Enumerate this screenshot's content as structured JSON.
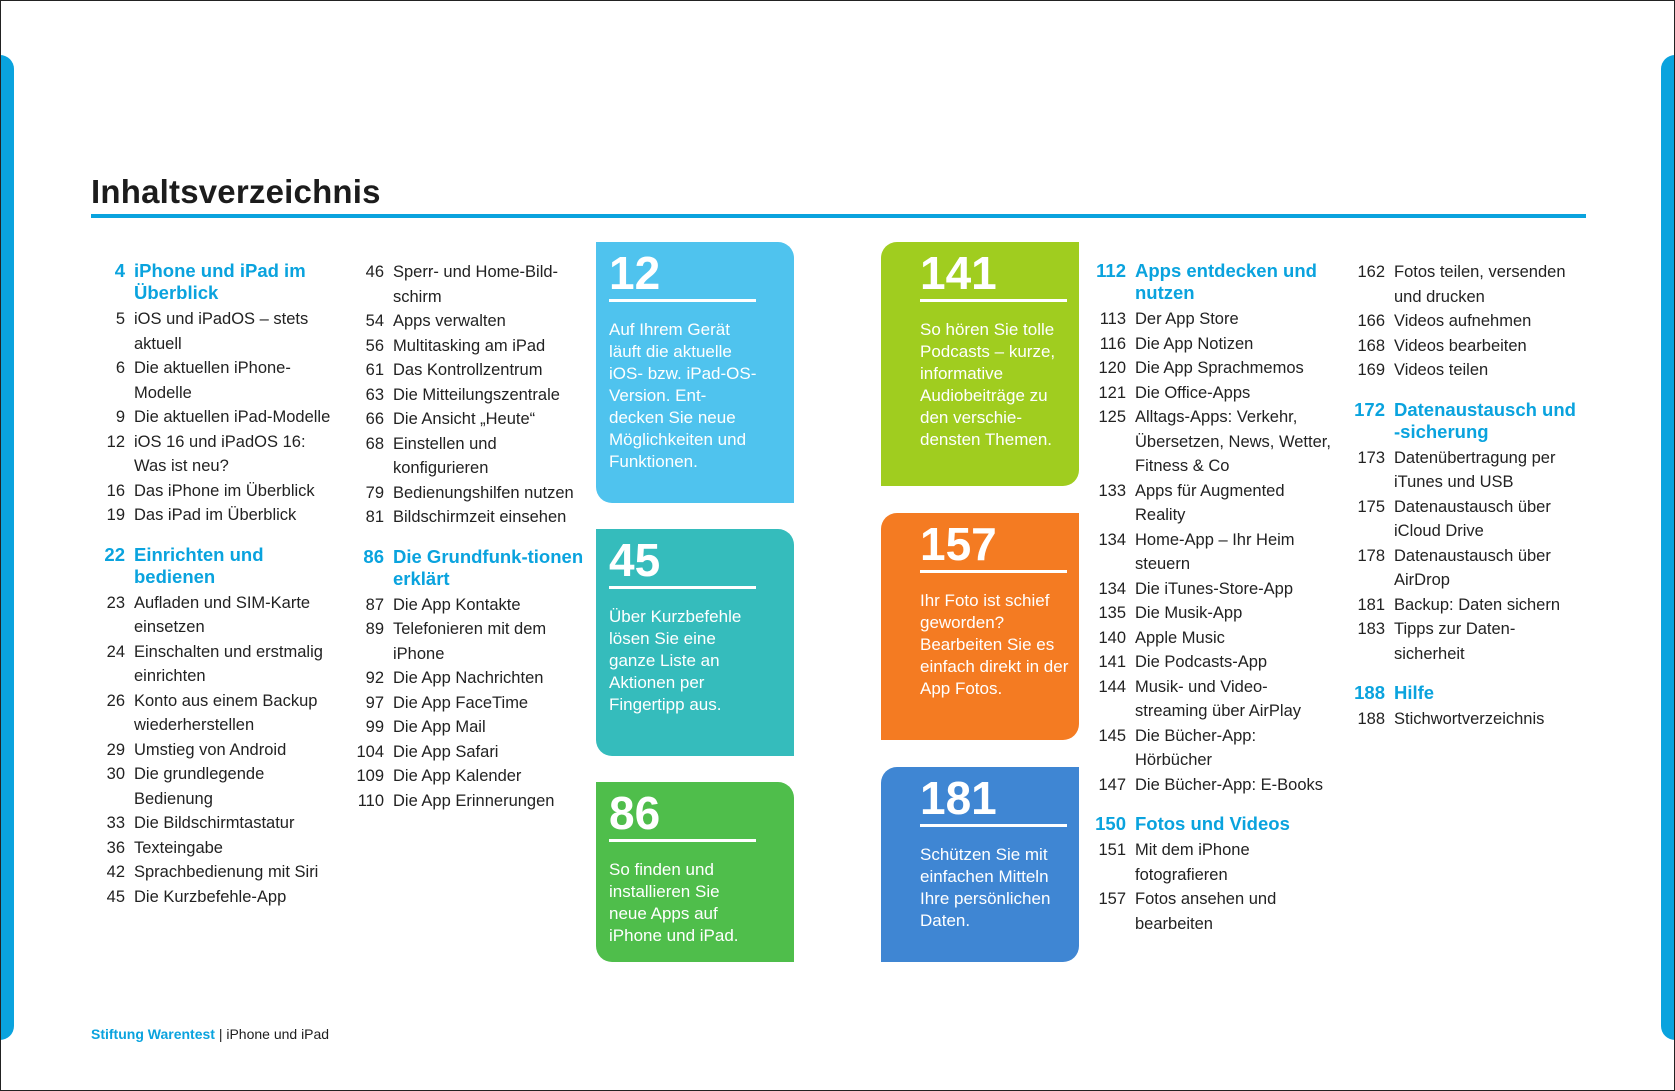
{
  "title": "Inhaltsverzeichnis",
  "footer": {
    "brand": "Stiftung Warentest",
    "separator": "|",
    "product": "iPhone und iPad"
  },
  "col1": [
    {
      "type": "section",
      "num": "4",
      "text": "iPhone und iPad im Überblick"
    },
    {
      "type": "item",
      "num": "5",
      "text": "iOS und iPadOS – stets aktuell"
    },
    {
      "type": "item",
      "num": "6",
      "text": "Die aktuellen iPhone-Modelle"
    },
    {
      "type": "item",
      "num": "9",
      "text": "Die aktuellen iPad-Modelle"
    },
    {
      "type": "item",
      "num": "12",
      "text": "iOS 16 und iPadOS 16: Was ist neu?"
    },
    {
      "type": "item",
      "num": "16",
      "text": "Das iPhone im Überblick"
    },
    {
      "type": "item",
      "num": "19",
      "text": "Das iPad im Überblick"
    },
    {
      "type": "section",
      "num": "22",
      "text": "Einrichten und bedienen"
    },
    {
      "type": "item",
      "num": "23",
      "text": "Aufladen und SIM-Karte einsetzen"
    },
    {
      "type": "item",
      "num": "24",
      "text": "Einschalten und erstmalig einrichten"
    },
    {
      "type": "item",
      "num": "26",
      "text": "Konto aus einem Backup wiederherstellen"
    },
    {
      "type": "item",
      "num": "29",
      "text": "Umstieg von Android"
    },
    {
      "type": "item",
      "num": "30",
      "text": "Die grundlegende Bedienung"
    },
    {
      "type": "item",
      "num": "33",
      "text": "Die Bildschirmtastatur"
    },
    {
      "type": "item",
      "num": "36",
      "text": "Texteingabe"
    },
    {
      "type": "item",
      "num": "42",
      "text": "Sprachbedienung mit Siri"
    },
    {
      "type": "item",
      "num": "45",
      "text": "Die Kurzbefehle-App"
    }
  ],
  "col2": [
    {
      "type": "item",
      "num": "46",
      "text": "Sperr- und Home-Bild-schirm"
    },
    {
      "type": "item",
      "num": "54",
      "text": "Apps verwalten"
    },
    {
      "type": "item",
      "num": "56",
      "text": "Multitasking am iPad"
    },
    {
      "type": "item",
      "num": "61",
      "text": "Das Kontrollzentrum"
    },
    {
      "type": "item",
      "num": "63",
      "text": "Die Mitteilungszentrale"
    },
    {
      "type": "item",
      "num": "66",
      "text": "Die Ansicht „Heute“"
    },
    {
      "type": "item",
      "num": "68",
      "text": "Einstellen und konfigurieren"
    },
    {
      "type": "item",
      "num": "79",
      "text": "Bedienungshilfen nutzen"
    },
    {
      "type": "item",
      "num": "81",
      "text": "Bildschirmzeit einsehen"
    },
    {
      "type": "section",
      "num": "86",
      "text": "Die Grundfunk-tionen erklärt"
    },
    {
      "type": "item",
      "num": "87",
      "text": "Die App Kontakte"
    },
    {
      "type": "item",
      "num": "89",
      "text": "Telefonieren mit dem iPhone"
    },
    {
      "type": "item",
      "num": "92",
      "text": "Die App Nachrichten"
    },
    {
      "type": "item",
      "num": "97",
      "text": "Die App FaceTime"
    },
    {
      "type": "item",
      "num": "99",
      "text": "Die App Mail"
    },
    {
      "type": "item",
      "num": "104",
      "text": "Die App Safari"
    },
    {
      "type": "item",
      "num": "109",
      "text": "Die App Kalender"
    },
    {
      "type": "item",
      "num": "110",
      "text": "Die App Erinnerungen"
    }
  ],
  "col3": [
    {
      "type": "section",
      "num": "112",
      "text": "Apps entdecken und nutzen"
    },
    {
      "type": "item",
      "num": "113",
      "text": "Der App Store"
    },
    {
      "type": "item",
      "num": "116",
      "text": "Die App Notizen"
    },
    {
      "type": "item",
      "num": "120",
      "text": "Die App Sprachmemos"
    },
    {
      "type": "item",
      "num": "121",
      "text": "Die Office-Apps"
    },
    {
      "type": "item",
      "num": "125",
      "text": "Alltags-Apps: Verkehr, Übersetzen, News, Wetter, Fitness & Co"
    },
    {
      "type": "item",
      "num": "133",
      "text": "Apps für Augmented Reality"
    },
    {
      "type": "item",
      "num": "134",
      "text": "Home-App – Ihr Heim steuern"
    },
    {
      "type": "item",
      "num": "134",
      "text": "Die iTunes-Store-App"
    },
    {
      "type": "item",
      "num": "135",
      "text": "Die Musik-App"
    },
    {
      "type": "item",
      "num": "140",
      "text": "Apple Music"
    },
    {
      "type": "item",
      "num": "141",
      "text": "Die Podcasts-App"
    },
    {
      "type": "item",
      "num": "144",
      "text": "Musik- und Video-streaming über AirPlay"
    },
    {
      "type": "item",
      "num": "145",
      "text": "Die Bücher-App: Hörbücher"
    },
    {
      "type": "item",
      "num": "147",
      "text": "Die Bücher-App: E-Books"
    },
    {
      "type": "section",
      "num": "150",
      "text": "Fotos und Videos"
    },
    {
      "type": "item",
      "num": "151",
      "text": "Mit dem iPhone fotografieren"
    },
    {
      "type": "item",
      "num": "157",
      "text": "Fotos ansehen und bearbeiten"
    }
  ],
  "col4": [
    {
      "type": "item",
      "num": "162",
      "text": "Fotos teilen, versenden und drucken"
    },
    {
      "type": "item",
      "num": "166",
      "text": "Videos aufnehmen"
    },
    {
      "type": "item",
      "num": "168",
      "text": "Videos bearbeiten"
    },
    {
      "type": "item",
      "num": "169",
      "text": "Videos teilen"
    },
    {
      "type": "section",
      "num": "172",
      "text": "Datenaustausch und -sicherung"
    },
    {
      "type": "item",
      "num": "173",
      "text": "Datenübertragung per iTunes und USB"
    },
    {
      "type": "item",
      "num": "175",
      "text": "Datenaustausch über iCloud Drive"
    },
    {
      "type": "item",
      "num": "178",
      "text": "Datenaustausch über AirDrop"
    },
    {
      "type": "item",
      "num": "181",
      "text": "Backup: Daten sichern"
    },
    {
      "type": "item",
      "num": "183",
      "text": "Tipps zur Daten-sicherheit"
    },
    {
      "type": "section",
      "num": "188",
      "text": "Hilfe"
    },
    {
      "type": "item",
      "num": "188",
      "text": "Stichwortverzeichnis"
    }
  ],
  "boxes": [
    {
      "num": "12",
      "text": "Auf Ihrem Gerät läuft die aktuelle iOS- bzw. iPad-OS-Version. Ent-decken Sie neue Möglichkeiten und Funktionen.",
      "color": "#4fc3ee"
    },
    {
      "num": "45",
      "text": "Über Kurzbefehle lösen Sie eine ganze Liste an Aktionen per Fingertipp aus.",
      "color": "#35bcbc"
    },
    {
      "num": "86",
      "text": "So finden und installieren Sie neue Apps auf iPhone und iPad.",
      "color": "#4fbe4b"
    },
    {
      "num": "141",
      "text": "So hören Sie tolle Podcasts – kurze, informative Audiobeiträge zu den verschie-densten Themen.",
      "color": "#a0cd1f"
    },
    {
      "num": "157",
      "text": "Ihr Foto ist schief geworden? Bearbeiten Sie es einfach direkt in der App Fotos.",
      "color": "#f47b22"
    },
    {
      "num": "181",
      "text": "Schützen Sie mit einfachen Mitteln Ihre persönlichen Daten.",
      "color": "#3f86d3"
    }
  ],
  "accent": "#0aa3de"
}
